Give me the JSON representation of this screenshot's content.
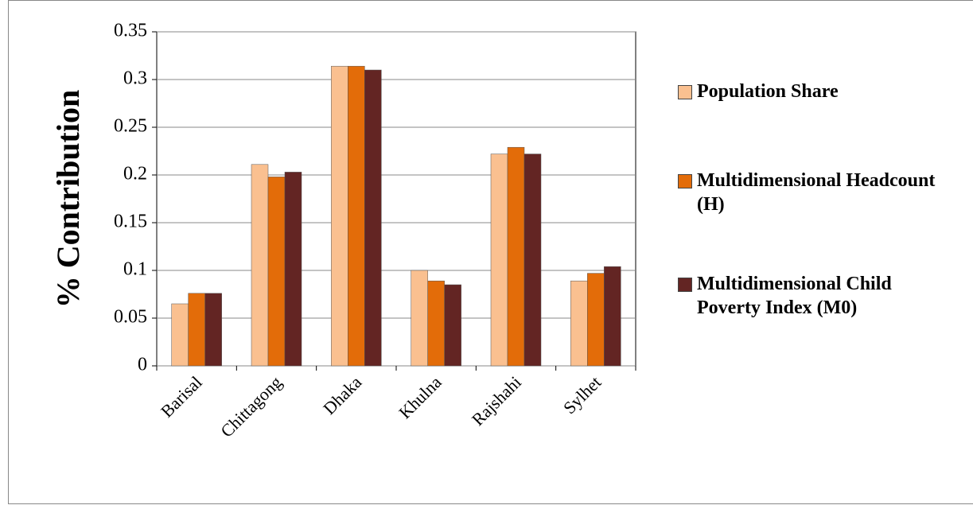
{
  "chart_data": {
    "type": "bar",
    "y_label": "% Contribution",
    "categories": [
      "Barisal",
      "Chittagong",
      "Dhaka",
      "Khulna",
      "Rajshahi",
      "Sylhet"
    ],
    "series": [
      {
        "name": "Population Share",
        "color": "#fac090",
        "values": [
          0.065,
          0.211,
          0.314,
          0.1,
          0.222,
          0.089
        ]
      },
      {
        "name": "Multidimensional Headcount (H)",
        "color": "#e36c09",
        "values": [
          0.076,
          0.198,
          0.314,
          0.089,
          0.229,
          0.097
        ]
      },
      {
        "name": "Multidimensional Child Poverty Index (M0)",
        "color": "#632523",
        "values": [
          0.076,
          0.203,
          0.31,
          0.085,
          0.222,
          0.104
        ]
      }
    ],
    "ylim": [
      0,
      0.35
    ],
    "yticks": [
      0,
      0.05,
      0.1,
      0.15,
      0.2,
      0.25,
      0.3,
      0.35
    ],
    "grid": true
  }
}
